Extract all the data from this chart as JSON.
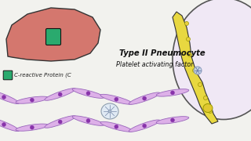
{
  "bg_color": "#f2f2ee",
  "liver_color": "#d4776e",
  "liver_outline": "#333333",
  "crp_color": "#2aaa6e",
  "cell_fill": "#ddb0e8",
  "cell_outline": "#9966bb",
  "nucleus_color": "#8833aa",
  "pneumo_large_fill": "#f0e8f5",
  "pneumo_large_outline": "#555555",
  "pneumo_body_fill": "#e8d840",
  "pneumo_body_outline": "#333333",
  "organelle_fill": "#e8d040",
  "organelle_outline": "#999900",
  "bact_fill": "#c8d8e8",
  "bact_outline": "#8899bb",
  "text_label1": "C-reactive Protein (C",
  "text_label2": "Type II Pneumocyte",
  "text_label3": "Platelet activating factor",
  "font_family": "DejaVu Sans"
}
